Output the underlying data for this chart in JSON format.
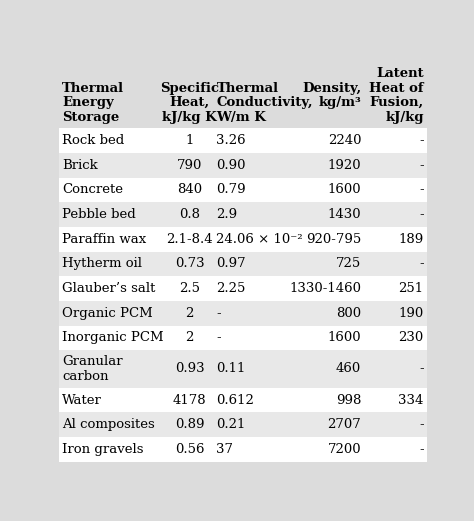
{
  "col_headers": [
    [
      "Thermal",
      "Energy",
      "Storage"
    ],
    [
      "Specific",
      "Heat,",
      "kJ/kg K"
    ],
    [
      "Thermal",
      "Conductivity,",
      "W/m K"
    ],
    [
      "Density,",
      "kg/m³",
      ""
    ],
    [
      "Latent",
      "Heat of",
      "Fusion,",
      "kJ/kg"
    ]
  ],
  "header_line0": [
    "",
    "",
    "",
    "",
    "Latent"
  ],
  "header_line1": [
    "Thermal",
    "Specific",
    "Thermal",
    "Density,",
    "Heat of"
  ],
  "header_line2": [
    "Energy",
    "Heat,",
    "Conductivity,",
    "kg/m³",
    "Fusion,"
  ],
  "header_line3": [
    "Storage",
    "kJ/kg K",
    "W/m K",
    "",
    "kJ/kg"
  ],
  "rows": [
    [
      "Rock bed",
      "1",
      "3.26",
      "2240",
      "-"
    ],
    [
      "Brick",
      "790",
      "0.90",
      "1920",
      "-"
    ],
    [
      "Concrete",
      "840",
      "0.79",
      "1600",
      "-"
    ],
    [
      "Pebble bed",
      "0.8",
      "2.9",
      "1430",
      "-"
    ],
    [
      "Paraffin wax",
      "2.1-8.4",
      "24.06 × 10⁻²",
      "920-795",
      "189"
    ],
    [
      "Hytherm oil",
      "0.73",
      "0.97",
      "725",
      "-"
    ],
    [
      "Glauber’s salt",
      "2.5",
      "2.25",
      "1330-1460",
      "251"
    ],
    [
      "Organic PCM",
      "2",
      "-",
      "800",
      "190"
    ],
    [
      "Inorganic PCM",
      "2",
      "-",
      "1600",
      "230"
    ],
    [
      "Granular\ncarbon",
      "0.93",
      "0.11",
      "460",
      "-"
    ],
    [
      "Water",
      "4178",
      "0.612",
      "998",
      "334"
    ],
    [
      "Al composites",
      "0.89",
      "0.21",
      "2707",
      "-"
    ],
    [
      "Iron gravels",
      "0.56",
      "37",
      "7200",
      "-"
    ]
  ],
  "col_aligns": [
    "left",
    "center",
    "left",
    "right",
    "right"
  ],
  "header_bg": "#dcdcdc",
  "row_bg_light": "#ffffff",
  "row_bg_gray": "#e8e8e8",
  "row_pattern": [
    0,
    1,
    0,
    1,
    0,
    1,
    0,
    1,
    0,
    1,
    0,
    1,
    0
  ],
  "font_size": 9.5,
  "header_font_size": 9.5,
  "fig_bg": "#dcdcdc"
}
